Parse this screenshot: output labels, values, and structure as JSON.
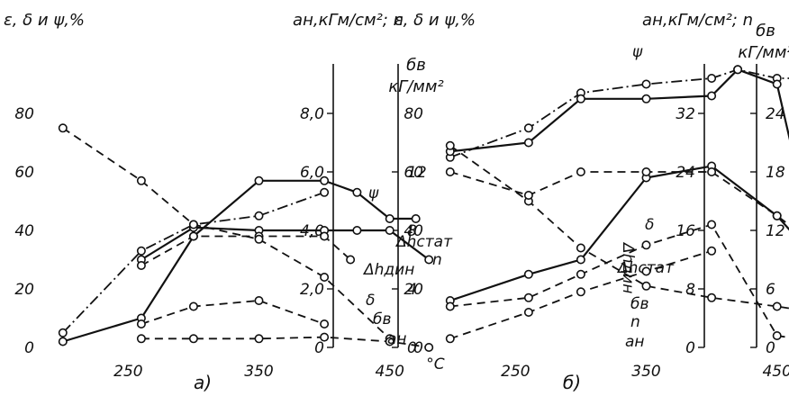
{
  "chart_data": [
    {
      "type": "line",
      "caption": "а)",
      "xlabel": "°C",
      "x_ticks": [
        250,
        350,
        450
      ],
      "xlim": [
        185,
        495
      ],
      "left_axis": {
        "title": "ε, δ и ψ,%",
        "ticks": [
          0,
          20,
          40,
          60,
          80
        ],
        "ylim": [
          0,
          100
        ]
      },
      "right_axis1": {
        "title": "aн,кГм/см²; n",
        "ticks": [
          "0",
          "2,0",
          "4,0",
          "6,0",
          "8,0"
        ],
        "ylim": [
          0,
          10
        ]
      },
      "right_axis2": {
        "title_line1": "бв",
        "title_line2": "кГ/мм²",
        "ticks": [
          0,
          4,
          8,
          12
        ],
        "ylim": [
          0,
          20
        ]
      },
      "series": [
        {
          "name": "ψ",
          "axis": "left",
          "style": "dashdot",
          "x": [
            200,
            260,
            300,
            350,
            400
          ],
          "y": [
            5,
            33,
            42,
            45,
            53
          ]
        },
        {
          "name": "n",
          "axis": "left",
          "style": "solid",
          "x": [
            200,
            260,
            300,
            350,
            400,
            425,
            450,
            470
          ],
          "y": [
            2,
            10,
            38,
            57,
            57,
            53,
            44,
            44
          ]
        },
        {
          "name": "Δhстат",
          "axis": "left",
          "style": "solid",
          "x": [
            260,
            300,
            350,
            400,
            425,
            450,
            480
          ],
          "y": [
            30,
            41,
            40,
            40,
            40,
            40,
            30
          ]
        },
        {
          "name": "Δhдин",
          "axis": "left",
          "style": "dashed",
          "x": [
            260,
            300,
            350,
            400,
            420
          ],
          "y": [
            28,
            38,
            38,
            38,
            30
          ]
        },
        {
          "name": "бв",
          "axis": "left",
          "style": "dashed",
          "x": [
            200,
            260,
            300,
            350,
            400,
            450
          ],
          "y": [
            75,
            57,
            42,
            37,
            24,
            3
          ]
        },
        {
          "name": "δ",
          "axis": "left",
          "style": "dashed",
          "x": [
            260,
            300,
            350,
            400
          ],
          "y": [
            8,
            14,
            16,
            8
          ]
        },
        {
          "name": "aн",
          "axis": "left",
          "style": "dashed",
          "x": [
            260,
            300,
            350,
            400,
            450,
            480
          ],
          "y": [
            3,
            3,
            3,
            3.5,
            2,
            0
          ]
        }
      ]
    },
    {
      "type": "line",
      "caption": "б)",
      "xlabel": "°C",
      "x_ticks": [
        250,
        350,
        450
      ],
      "xlim": [
        185,
        495
      ],
      "left_axis": {
        "title": "ε, δ и ψ,%",
        "ticks": [
          0,
          20,
          40,
          60,
          80
        ],
        "ylim": [
          0,
          100
        ]
      },
      "right_axis1": {
        "title": "aн,кГм/см²; n",
        "ticks": [
          0,
          8,
          16,
          24,
          32
        ],
        "ylim": [
          0,
          40
        ]
      },
      "right_axis2": {
        "title_line1": "бв",
        "title_line2": "кГ/мм²",
        "ticks": [
          0,
          6,
          12,
          18,
          24
        ],
        "ylim": [
          0,
          30
        ]
      },
      "series": [
        {
          "name": "ψ",
          "axis": "left",
          "style": "dashdot",
          "x": [
            200,
            260,
            300,
            350,
            400,
            420,
            450,
            480
          ],
          "y": [
            65,
            75,
            87,
            90,
            92,
            95,
            92,
            92
          ]
        },
        {
          "name": "n",
          "axis": "left",
          "style": "solid",
          "x": [
            200,
            260,
            300,
            350,
            400,
            420,
            450,
            480
          ],
          "y": [
            67,
            70,
            85,
            85,
            86,
            95,
            90,
            32
          ]
        },
        {
          "name": "Δhстат",
          "axis": "left",
          "style": "solid",
          "x": [
            200,
            260,
            300,
            350,
            400,
            450,
            480
          ],
          "y": [
            16,
            25,
            30,
            58,
            62,
            45,
            30
          ]
        },
        {
          "name": "Δhдин",
          "axis": "left",
          "style": "dashed",
          "x": [
            200,
            260,
            300,
            350,
            400
          ],
          "y": [
            3,
            12,
            19,
            26,
            33
          ]
        },
        {
          "name": "бв",
          "axis": "left",
          "style": "dashed",
          "x": [
            200,
            260,
            300,
            350,
            400,
            450,
            480
          ],
          "y": [
            69,
            50,
            34,
            21,
            17,
            14,
            12
          ]
        },
        {
          "name": "δ",
          "axis": "left",
          "style": "dashed",
          "x": [
            200,
            260,
            300,
            350,
            400,
            450,
            480
          ],
          "y": [
            60,
            52,
            60,
            60,
            60,
            45,
            35
          ]
        },
        {
          "name": "aн",
          "axis": "left",
          "style": "dashed",
          "x": [
            200,
            260,
            300,
            350,
            400,
            450,
            480
          ],
          "y": [
            14,
            17,
            25,
            35,
            42,
            4,
            2
          ]
        }
      ]
    }
  ]
}
